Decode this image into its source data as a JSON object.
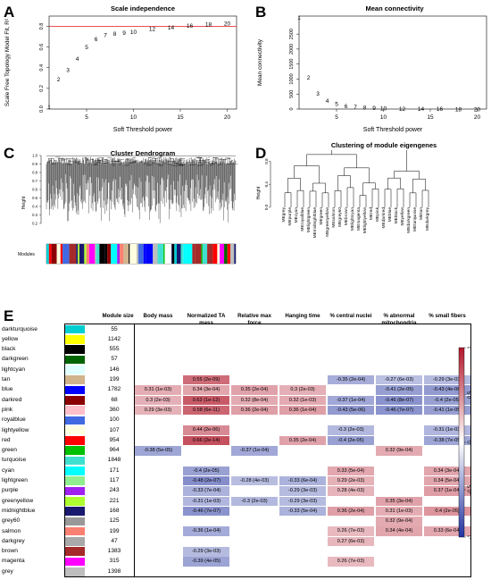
{
  "panels": {
    "A": {
      "label": "A",
      "title": "Scale independence",
      "ylabel": "Scale Free Topology Model Fit, R²",
      "xlabel": "Soft Threshold power",
      "xticks": [
        "5",
        "10",
        "15",
        "20"
      ],
      "yticks": [
        "0.0",
        "0.2",
        "0.4",
        "0.6",
        "0.8"
      ]
    },
    "B": {
      "label": "B",
      "title": "Mean connectivity",
      "ylabel": "Mean connectivity",
      "xlabel": "Soft Threshold power",
      "xticks": [
        "5",
        "10",
        "15",
        "20"
      ],
      "yticks": [
        "0",
        "500",
        "1000",
        "1500",
        "2000",
        "2500"
      ]
    },
    "C": {
      "label": "C",
      "title": "Cluster Dendrogram",
      "ylabel": "Height",
      "modules_label": "Modules",
      "yticks": [
        "0.2",
        "0.3",
        "0.4",
        "0.5",
        "0.6",
        "0.7",
        "0.8",
        "0.9",
        "1.0"
      ]
    },
    "D": {
      "label": "D",
      "title": "Clustering of module eigengenes",
      "ylabel": "Height",
      "yticks": [
        "0.0",
        "0.4",
        "0.8"
      ],
      "leaves": [
        "MEgrey",
        "MEpurple",
        "MEcyan",
        "MEroyalblue",
        "MElightgreen",
        "MEmidnightblue",
        "MEgreen",
        "MEgreenyellow",
        "MEsalmon",
        "MEgrey60",
        "MEbrown",
        "MElightcyan",
        "MEmagenta",
        "MElightyellow",
        "MEred",
        "MEpink",
        "MEdarkred",
        "MEblue",
        "MEblack",
        "MEyellow",
        "MEdarkgreen",
        "MEturquoise",
        "MEtan",
        "MEdarkgrey"
      ]
    },
    "E": {
      "label": "E",
      "size_header": "Module size",
      "headers": [
        "Body mass",
        "Normalized TA mass",
        "Relative max force",
        "Hanging time",
        "% central nuclei",
        "% abnormal mitochondria",
        "% small fibers"
      ],
      "legend_ticks": [
        "1",
        "0.5",
        "0",
        "-0.5",
        "-1"
      ]
    }
  },
  "chart_data": [
    {
      "type": "scatter",
      "title": "Scale independence",
      "xlabel": "Soft Threshold power",
      "ylabel": "Scale Free Topology Model Fit, R²",
      "x": [
        1,
        2,
        3,
        4,
        5,
        6,
        7,
        8,
        9,
        10,
        12,
        14,
        16,
        18,
        20
      ],
      "y": [
        0.02,
        0.29,
        0.38,
        0.49,
        0.6,
        0.68,
        0.72,
        0.73,
        0.74,
        0.75,
        0.78,
        0.79,
        0.81,
        0.82,
        0.83
      ],
      "xlim": [
        1,
        21
      ],
      "ylim": [
        0,
        0.9
      ],
      "hline": 0.8,
      "hline_color": "#e8373a"
    },
    {
      "type": "scatter",
      "title": "Mean connectivity",
      "xlabel": "Soft Threshold power",
      "ylabel": "Mean connectivity",
      "x": [
        1,
        2,
        3,
        4,
        5,
        6,
        7,
        8,
        9,
        10,
        12,
        14,
        16,
        18,
        20
      ],
      "y": [
        3050,
        1060,
        520,
        290,
        175,
        110,
        75,
        55,
        40,
        30,
        18,
        12,
        8,
        6,
        4
      ],
      "xlim": [
        1,
        21
      ],
      "ylim": [
        0,
        3100
      ]
    },
    {
      "type": "table",
      "title": "",
      "rows": [
        {
          "module": "darkturquoise",
          "size": "55",
          "color": "#00ced1",
          "cells": [
            "",
            "",
            "",
            "",
            "",
            "",
            ""
          ],
          "r": [
            0,
            0,
            0,
            0,
            0,
            0,
            0
          ]
        },
        {
          "module": "yellow",
          "size": "1142",
          "color": "#ffff00",
          "cells": [
            "",
            "",
            "",
            "",
            "",
            "",
            ""
          ],
          "r": [
            0,
            0,
            0,
            0,
            0,
            0,
            0
          ]
        },
        {
          "module": "black",
          "size": "555",
          "color": "#000000",
          "cells": [
            "",
            "",
            "",
            "",
            "",
            "",
            ""
          ],
          "r": [
            0,
            0,
            0,
            0,
            0,
            0,
            0
          ]
        },
        {
          "module": "darkgreen",
          "size": "57",
          "color": "#006400",
          "cells": [
            "",
            "",
            "",
            "",
            "",
            "",
            ""
          ],
          "r": [
            0,
            0,
            0,
            0,
            0,
            0,
            0
          ]
        },
        {
          "module": "lightcyan",
          "size": "146",
          "color": "#e0ffff",
          "cells": [
            "",
            "",
            "",
            "",
            "",
            "",
            ""
          ],
          "r": [
            0,
            0,
            0,
            0,
            0,
            0,
            0
          ]
        },
        {
          "module": "tan",
          "size": "199",
          "color": "#d2b48c",
          "cells": [
            "",
            "0.55 (2e-09)",
            "",
            "",
            "-0.35 (2e-04)",
            "-0.27 (6e-03)",
            "-0.29 (3e-03)"
          ],
          "r": [
            0,
            0.55,
            0,
            0,
            -0.35,
            -0.27,
            -0.29
          ]
        },
        {
          "module": "blue",
          "size": "1782",
          "color": "#0000ff",
          "cells": [
            "0.31 (1e-03)",
            "0.34 (3e-04)",
            "0.35 (2e-04)",
            "0.3 (2e-03)",
            "",
            "-0.41 (2e-05)",
            "-0.43 (4e-06)"
          ],
          "r": [
            0.31,
            0.34,
            0.35,
            0.3,
            0,
            -0.41,
            -0.43
          ]
        },
        {
          "module": "darkred",
          "size": "68",
          "color": "#8b0000",
          "cells": [
            "0.3 (2e-03)",
            "0.62 (1e-12)",
            "0.32 (8e-04)",
            "0.32 (1e-03)",
            "-0.37 (1e-04)",
            "-0.46 (8e-07)",
            "-0.4 (2e-05)"
          ],
          "r": [
            0.3,
            0.62,
            0.32,
            0.32,
            -0.37,
            -0.46,
            -0.4
          ]
        },
        {
          "module": "pink",
          "size": "360",
          "color": "#ffc0cb",
          "cells": [
            "0.29 (3e-03)",
            "0.58 (6e-11)",
            "0.36 (2e-04)",
            "0.36 (1e-04)",
            "-0.43 (5e-06)",
            "-0.46 (7e-07)",
            "-0.41 (1e-05)"
          ],
          "r": [
            0.29,
            0.58,
            0.36,
            0.36,
            -0.43,
            -0.46,
            -0.41
          ]
        },
        {
          "module": "royalblue",
          "size": "100",
          "color": "#4169e1",
          "cells": [
            "",
            "",
            "",
            "",
            "",
            "",
            ""
          ],
          "r": [
            0,
            0,
            0,
            0,
            0,
            0,
            0
          ]
        },
        {
          "module": "lightyellow",
          "size": "107",
          "color": "#ffffe0",
          "cells": [
            "",
            "0.44 (2e-06)",
            "",
            "",
            "-0.3 (2e-03)",
            "",
            "-0.31 (1e-03)"
          ],
          "r": [
            0,
            0.44,
            0,
            0,
            -0.3,
            0,
            -0.31
          ]
        },
        {
          "module": "red",
          "size": "954",
          "color": "#ff0000",
          "cells": [
            "",
            "0.66 (2e-14)",
            "",
            "0.35 (2e-04)",
            "-0.4 (2e-05)",
            "",
            "-0.38 (7e-05)"
          ],
          "r": [
            0,
            0.66,
            0,
            0.35,
            -0.4,
            0,
            -0.38
          ]
        },
        {
          "module": "green",
          "size": "964",
          "color": "#00c000",
          "cells": [
            "-0.38 (5e-05)",
            "",
            "-0.37 (1e-04)",
            "",
            "",
            "0.32 (9e-04)",
            ""
          ],
          "r": [
            -0.38,
            0,
            -0.37,
            0,
            0,
            0.32,
            0
          ]
        },
        {
          "module": "turquoise",
          "size": "1848",
          "color": "#40e0d0",
          "cells": [
            "",
            "",
            "",
            "",
            "",
            "",
            ""
          ],
          "r": [
            0,
            0,
            0,
            0,
            0,
            0,
            0
          ]
        },
        {
          "module": "cyan",
          "size": "171",
          "color": "#00ffff",
          "cells": [
            "",
            "-0.4 (2e-05)",
            "",
            "",
            "0.33 (5e-04)",
            "",
            "0.34 (3e-04)"
          ],
          "r": [
            0,
            -0.4,
            0,
            0,
            0.33,
            0,
            0.34
          ]
        },
        {
          "module": "lightgreen",
          "size": "117",
          "color": "#90ee90",
          "cells": [
            "",
            "-0.48 (2e-07)",
            "-0.28 (4e-03)",
            "-0.33 (6e-04)",
            "0.29 (2e-03)",
            "",
            "0.34 (5e-04)"
          ],
          "r": [
            0,
            -0.48,
            -0.28,
            -0.33,
            0.29,
            0,
            0.34
          ]
        },
        {
          "module": "purple",
          "size": "243",
          "color": "#a020f0",
          "cells": [
            "",
            "-0.33 (7e-04)",
            "",
            "-0.29 (3e-03)",
            "0.28 (4e-03)",
            "",
            "0.37 (1e-04)"
          ],
          "r": [
            0,
            -0.33,
            0,
            -0.29,
            0.28,
            0,
            0.37
          ]
        },
        {
          "module": "greenyellow",
          "size": "221",
          "color": "#adff2f",
          "cells": [
            "",
            "-0.31 (1e-03)",
            "-0.3 (2e-03)",
            "-0.29 (3e-03)",
            "",
            "0.35 (3e-04)",
            ""
          ],
          "r": [
            0,
            -0.31,
            -0.3,
            -0.29,
            0,
            0.35,
            0
          ]
        },
        {
          "module": "midnightblue",
          "size": "168",
          "color": "#191970",
          "cells": [
            "",
            "-0.46 (7e-07)",
            "",
            "-0.33 (5e-04)",
            "0.36 (2e-04)",
            "0.31 (1e-03)",
            "0.4 (2e-05)"
          ],
          "r": [
            0,
            -0.46,
            0,
            -0.33,
            0.36,
            0.31,
            0.4
          ]
        },
        {
          "module": "grey60",
          "size": "125",
          "color": "#999999",
          "cells": [
            "",
            "",
            "",
            "",
            "",
            "0.32 (9e-04)",
            ""
          ],
          "r": [
            0,
            0,
            0,
            0,
            0,
            0.32,
            0
          ]
        },
        {
          "module": "salmon",
          "size": "199",
          "color": "#fa8072",
          "cells": [
            "",
            "-0.36 (1e-04)",
            "",
            "",
            "0.26 (7e-03)",
            "0.34 (4e-04)",
            "0.33 (6e-04)"
          ],
          "r": [
            0,
            -0.36,
            0,
            0,
            0.26,
            0.34,
            0.33
          ]
        },
        {
          "module": "darkgrey",
          "size": "47",
          "color": "#a9a9a9",
          "cells": [
            "",
            "",
            "",
            "",
            "0.27 (6e-03)",
            "",
            ""
          ],
          "r": [
            0,
            0,
            0,
            0,
            0.27,
            0,
            0
          ]
        },
        {
          "module": "brown",
          "size": "1383",
          "color": "#a52a2a",
          "cells": [
            "",
            "-0.29 (3e-03)",
            "",
            "",
            "",
            "",
            ""
          ],
          "r": [
            0,
            -0.29,
            0,
            0,
            0,
            0,
            0
          ]
        },
        {
          "module": "magenta",
          "size": "315",
          "color": "#ff00ff",
          "cells": [
            "",
            "-0.39 (4e-05)",
            "",
            "",
            "0.26 (7e-03)",
            "",
            ""
          ],
          "r": [
            0,
            -0.39,
            0,
            0,
            0.26,
            0,
            0
          ]
        },
        {
          "module": "grey",
          "size": "1398",
          "color": "#bebebe",
          "cells": [
            "",
            "",
            "",
            "",
            "",
            "",
            ""
          ],
          "r": [
            0,
            0,
            0,
            0,
            0,
            0,
            0
          ]
        }
      ]
    }
  ],
  "colors": {
    "positive": "#b2182b",
    "negative": "#2233a0",
    "neutral": "#ffffff",
    "threshold_line": "#e8373a"
  }
}
